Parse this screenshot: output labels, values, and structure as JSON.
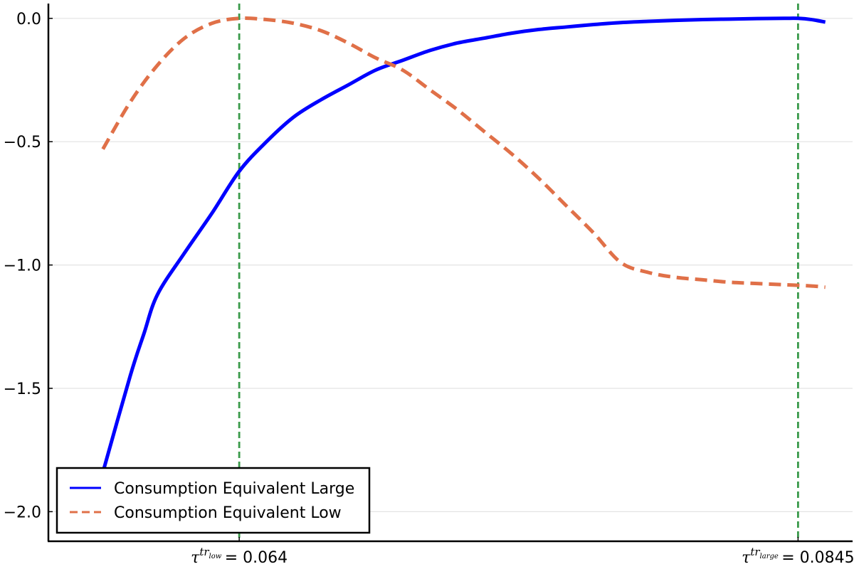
{
  "chart_data": {
    "type": "line",
    "title": "",
    "xlabel": "",
    "ylabel": "",
    "xlim": [
      0.057,
      0.0865
    ],
    "ylim": [
      -2.12,
      0.06
    ],
    "grid": {
      "x": false,
      "y": true
    },
    "yticks": [
      0.0,
      -0.5,
      -1.0,
      -1.5,
      -2.0
    ],
    "ytick_labels": [
      "0.0",
      "−0.5",
      "−1.0",
      "−1.5",
      "−2.0"
    ],
    "xticks": [
      {
        "value": 0.064,
        "symbol": "τ",
        "sup": "tr",
        "sub": "low",
        "equals": "= 0.064"
      },
      {
        "value": 0.0845,
        "symbol": "τ",
        "sup": "tr",
        "sub": "large",
        "equals": "= 0.0845"
      }
    ],
    "vlines": [
      0.064,
      0.0845
    ],
    "vline_color": "#3a9a4b",
    "series": [
      {
        "name": "Consumption Equivalent Large",
        "color": "#0000ff",
        "style": "solid",
        "x": [
          0.059,
          0.06,
          0.0605,
          0.061,
          0.062,
          0.063,
          0.064,
          0.065,
          0.066,
          0.067,
          0.068,
          0.069,
          0.07,
          0.071,
          0.072,
          0.073,
          0.074,
          0.075,
          0.076,
          0.077,
          0.078,
          0.079,
          0.08,
          0.081,
          0.082,
          0.083,
          0.084,
          0.0845,
          0.085,
          0.0855
        ],
        "y": [
          -1.84,
          -1.45,
          -1.28,
          -1.12,
          -0.95,
          -0.79,
          -0.62,
          -0.5,
          -0.4,
          -0.33,
          -0.27,
          -0.21,
          -0.17,
          -0.13,
          -0.1,
          -0.08,
          -0.06,
          -0.045,
          -0.035,
          -0.025,
          -0.017,
          -0.012,
          -0.008,
          -0.005,
          -0.003,
          -0.001,
          0.0,
          0.0,
          -0.005,
          -0.015
        ]
      },
      {
        "name": "Consumption Equivalent Low",
        "color": "#e07048",
        "style": "dashed",
        "x": [
          0.059,
          0.06,
          0.061,
          0.062,
          0.063,
          0.064,
          0.065,
          0.066,
          0.067,
          0.068,
          0.069,
          0.07,
          0.071,
          0.072,
          0.073,
          0.074,
          0.075,
          0.076,
          0.077,
          0.078,
          0.079,
          0.08,
          0.081,
          0.082,
          0.083,
          0.084,
          0.085,
          0.0855
        ],
        "y": [
          -0.53,
          -0.34,
          -0.19,
          -0.08,
          -0.02,
          0.0,
          -0.005,
          -0.02,
          -0.05,
          -0.1,
          -0.16,
          -0.21,
          -0.29,
          -0.37,
          -0.46,
          -0.55,
          -0.65,
          -0.76,
          -0.87,
          -0.99,
          -1.03,
          -1.05,
          -1.06,
          -1.07,
          -1.075,
          -1.08,
          -1.085,
          -1.09
        ]
      }
    ],
    "legend": {
      "position": "bottom-left"
    }
  }
}
